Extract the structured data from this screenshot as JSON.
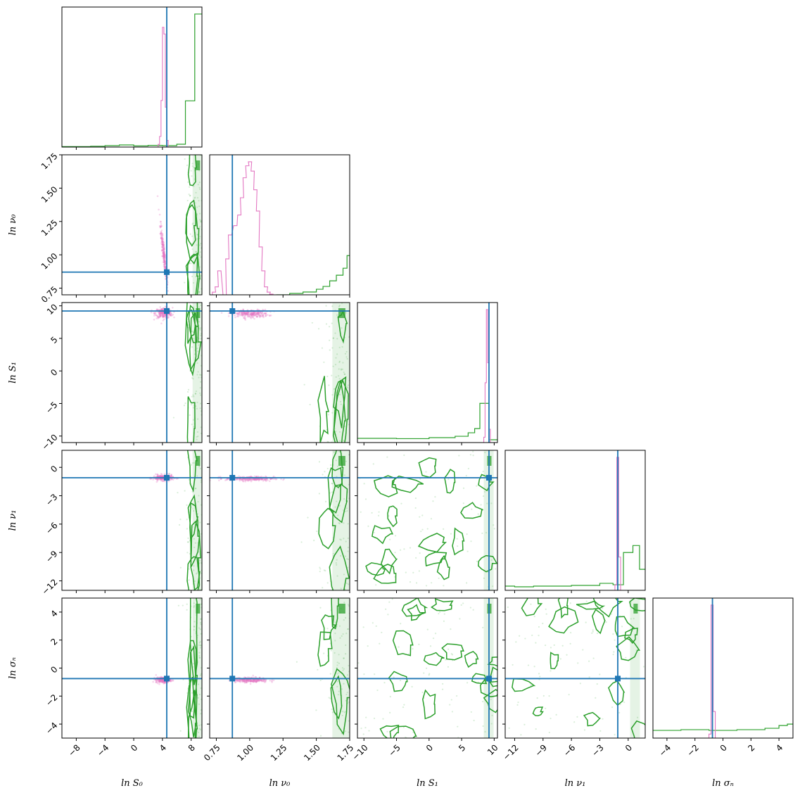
{
  "chart_data": {
    "type": "corner",
    "parameters": [
      {
        "key": "lnS0",
        "label": "ln S₀",
        "range": [
          -10,
          9.5
        ],
        "ticks": [
          -8,
          -4,
          0,
          4,
          8
        ],
        "tick_labels": [
          "−8",
          "−4",
          "0",
          "4",
          "8"
        ],
        "truth": 4.6
      },
      {
        "key": "lnnu0",
        "label": "ln ν₀",
        "range": [
          0.7,
          1.75
        ],
        "ticks": [
          0.75,
          1.0,
          1.25,
          1.5,
          1.75
        ],
        "tick_labels": [
          "0.75",
          "1.00",
          "1.25",
          "1.50",
          "1.75"
        ],
        "truth": 0.87
      },
      {
        "key": "lnS1",
        "label": "ln S₁",
        "range": [
          -11,
          10.5
        ],
        "ticks": [
          -10,
          -5,
          0,
          5,
          10
        ],
        "tick_labels": [
          "−10",
          "−5",
          "0",
          "5",
          "10"
        ],
        "truth": 9.2
      },
      {
        "key": "lnnu1",
        "label": "ln ν₁",
        "range": [
          -13,
          1.8
        ],
        "ticks": [
          -12,
          -9,
          -6,
          -3,
          0
        ],
        "tick_labels": [
          "−12",
          "−9",
          "−6",
          "−3",
          "0"
        ],
        "truth": -1.1
      },
      {
        "key": "lnsigman",
        "label": "ln σₙ",
        "range": [
          -5,
          5
        ],
        "ticks": [
          -4,
          -2,
          0,
          2,
          4
        ],
        "tick_labels": [
          "−4",
          "−2",
          "0",
          "2",
          "4"
        ],
        "truth": -0.75
      }
    ],
    "series": [
      {
        "name": "",
        "color": "#e377c2"
      },
      {
        "name": "",
        "color": "#2ca02c"
      }
    ],
    "truth_color": "#1f77b4",
    "diagonal_histograms": [
      {
        "param": "lnS0",
        "pink": {
          "bins": [
            [
              3.4,
              0.02
            ],
            [
              3.6,
              0.08
            ],
            [
              3.8,
              0.35
            ],
            [
              4.0,
              0.9
            ],
            [
              4.2,
              0.85
            ],
            [
              4.4,
              0.3
            ],
            [
              4.6,
              0.05
            ]
          ],
          "bin_width": 0.2
        },
        "green": {
          "steps": [
            [
              -10,
              0.003
            ],
            [
              -6,
              0.006
            ],
            [
              -4,
              0.01
            ],
            [
              -2,
              0.015
            ],
            [
              0,
              0.008
            ],
            [
              2,
              0.012
            ],
            [
              4,
              0.01
            ],
            [
              6,
              0.02
            ],
            [
              7.2,
              0.33
            ],
            [
              8.5,
              0.95
            ]
          ]
        }
      },
      {
        "param": "lnnu0",
        "pink": {
          "bins": [
            [
              0.72,
              0.02
            ],
            [
              0.74,
              0.06
            ],
            [
              0.76,
              0.18
            ],
            [
              0.8,
              0.0
            ],
            [
              0.82,
              0.27
            ],
            [
              0.84,
              0.45
            ],
            [
              0.88,
              0.52
            ],
            [
              0.91,
              0.6
            ],
            [
              0.93,
              0.73
            ],
            [
              0.95,
              0.88
            ],
            [
              0.97,
              0.97
            ],
            [
              0.99,
              1.0
            ],
            [
              1.01,
              0.93
            ],
            [
              1.03,
              0.79
            ],
            [
              1.05,
              0.63
            ],
            [
              1.07,
              0.36
            ],
            [
              1.09,
              0.18
            ],
            [
              1.11,
              0.06
            ],
            [
              1.13,
              0.02
            ],
            [
              1.15,
              0.005
            ]
          ],
          "bin_width": 0.025
        },
        "green": {
          "steps": [
            [
              1.2,
              0.0
            ],
            [
              1.3,
              0.01
            ],
            [
              1.4,
              0.02
            ],
            [
              1.5,
              0.04
            ],
            [
              1.55,
              0.06
            ],
            [
              1.6,
              0.1
            ],
            [
              1.65,
              0.14
            ],
            [
              1.7,
              0.19
            ],
            [
              1.73,
              0.28
            ]
          ]
        }
      },
      {
        "param": "lnS1",
        "pink": {
          "bins": [
            [
              8.4,
              0.04
            ],
            [
              8.6,
              0.45
            ],
            [
              8.8,
              1.0
            ],
            [
              9.0,
              0.6
            ],
            [
              9.2,
              0.1
            ]
          ],
          "bin_width": 0.2
        },
        "green": {
          "steps": [
            [
              -11,
              0.03
            ],
            [
              -5,
              0.028
            ],
            [
              0,
              0.035
            ],
            [
              4,
              0.045
            ],
            [
              6,
              0.07
            ],
            [
              7,
              0.1
            ],
            [
              7.8,
              0.28
            ],
            [
              9.2,
              0.02
            ],
            [
              10.5,
              0.02
            ]
          ]
        }
      },
      {
        "param": "lnnu1",
        "pink": {
          "bins": [
            [
              -1.4,
              0.04
            ],
            [
              -1.2,
              1.0
            ],
            [
              -1.0,
              0.25
            ]
          ],
          "bin_width": 0.2
        },
        "green": {
          "steps": [
            [
              -13,
              0.03
            ],
            [
              -12,
              0.025
            ],
            [
              -10,
              0.03
            ],
            [
              -8,
              0.03
            ],
            [
              -6,
              0.035
            ],
            [
              -3,
              0.05
            ],
            [
              -1.6,
              0.04
            ],
            [
              -0.5,
              0.27
            ],
            [
              0.5,
              0.32
            ],
            [
              1.2,
              0.15
            ]
          ]
        }
      },
      {
        "param": "lnsigman",
        "pink": {
          "bins": [
            [
              -1.0,
              0.03
            ],
            [
              -0.85,
              1.0
            ],
            [
              -0.7,
              0.2
            ]
          ],
          "bin_width": 0.15
        },
        "green": {
          "steps": [
            [
              -5,
              0.055
            ],
            [
              -3,
              0.06
            ],
            [
              -1,
              0.055
            ],
            [
              1,
              0.06
            ],
            [
              3,
              0.07
            ],
            [
              4,
              0.09
            ],
            [
              4.6,
              0.1
            ]
          ]
        }
      }
    ],
    "pink_scatter_centers": [
      {
        "x": "lnS0",
        "y": "lnnu0",
        "cx": 4.2,
        "cy": 1.0,
        "sx": 0.25,
        "sy": 0.12,
        "corr": -0.95
      },
      {
        "x": "lnS0",
        "y": "lnS1",
        "cx": 4.2,
        "cy": 8.9,
        "sx": 0.6,
        "sy": 0.4,
        "corr": 0
      },
      {
        "x": "lnnu0",
        "y": "lnS1",
        "cx": 1.0,
        "cy": 8.8,
        "sx": 0.07,
        "sy": 0.3,
        "corr": 0
      },
      {
        "x": "lnS0",
        "y": "lnnu1",
        "cx": 4.1,
        "cy": -1.1,
        "sx": 0.7,
        "sy": 0.15,
        "corr": 0
      },
      {
        "x": "lnnu0",
        "y": "lnnu1",
        "cx": 1.0,
        "cy": -1.2,
        "sx": 0.09,
        "sy": 0.12,
        "corr": 0
      },
      {
        "x": "lnS0",
        "y": "lnsigman",
        "cx": 4.1,
        "cy": -0.85,
        "sx": 0.5,
        "sy": 0.1,
        "corr": 0
      },
      {
        "x": "lnnu0",
        "y": "lnsigman",
        "cx": 1.0,
        "cy": -0.85,
        "sx": 0.07,
        "sy": 0.09,
        "corr": 0
      }
    ]
  }
}
